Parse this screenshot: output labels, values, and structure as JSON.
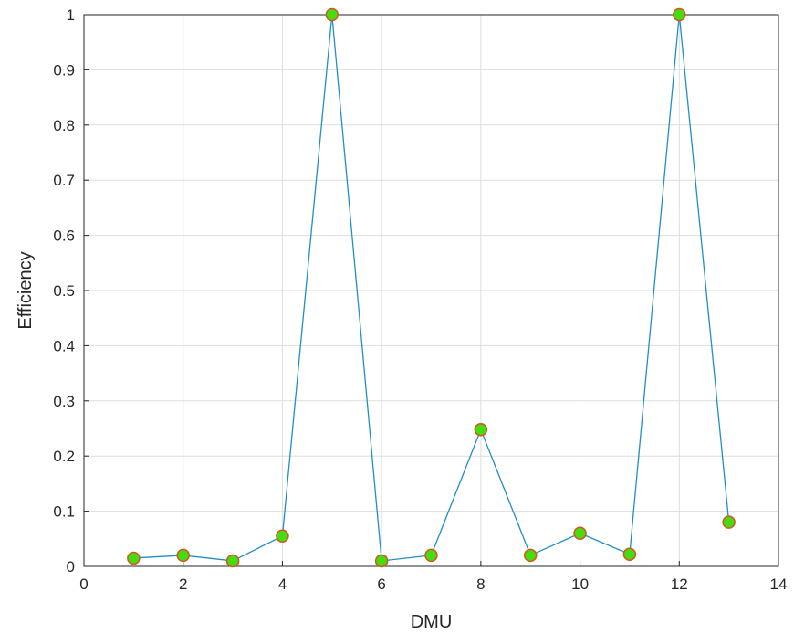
{
  "chart_data": {
    "type": "line",
    "title": "",
    "xlabel": "DMU",
    "ylabel": "Efficiency",
    "xlim": [
      0,
      14
    ],
    "ylim": [
      0,
      1
    ],
    "xticks": [
      0,
      2,
      4,
      6,
      8,
      10,
      12,
      14
    ],
    "yticks": [
      0,
      0.1,
      0.2,
      0.3,
      0.4,
      0.5,
      0.6,
      0.7,
      0.8,
      0.9,
      1
    ],
    "grid": true,
    "legend": "none",
    "series": [
      {
        "x": [
          1,
          2,
          3,
          4,
          5,
          6,
          7,
          8,
          9,
          10,
          11,
          12,
          13
        ],
        "values": [
          0.015,
          0.02,
          0.01,
          0.055,
          1.0,
          0.01,
          0.02,
          0.248,
          0.02,
          0.06,
          0.022,
          1.0,
          0.08
        ],
        "line_color": "#1f8fc7",
        "marker_fill": "#44dd11",
        "marker_edge": "#d9541a"
      }
    ]
  }
}
